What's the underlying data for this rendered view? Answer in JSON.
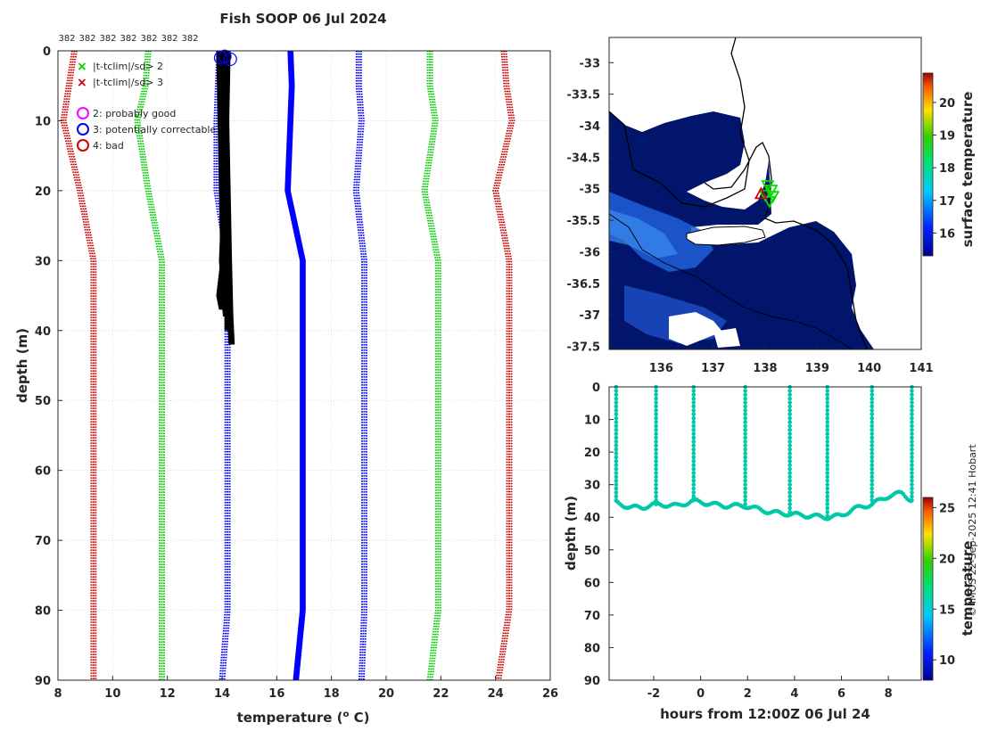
{
  "title": "Fish SOOP 06 Jul 2024",
  "watermark": "© IMOS 22-Sep-2025 12:41 Hobart",
  "profile_counts": [
    "382",
    "382",
    "382",
    "382",
    "382",
    "382",
    "382"
  ],
  "legend": {
    "x_green": "|t-tclim|/sd> 2",
    "x_red": "|t-tclim|/sd> 3",
    "o_magenta": "2: probably good",
    "o_blue": "3: potentially correctable",
    "o_red": "4: bad"
  },
  "colors": {
    "sd1": "#0000ff",
    "sd2": "#00cc00",
    "sd3": "#cc0000",
    "clim": "#0000ff",
    "profile": "#000000",
    "magenta": "#ff00ff",
    "track": "#00c9a7",
    "ocean": "#00146e",
    "land": "#ffffff"
  },
  "chart_data": [
    {
      "id": "profile",
      "type": "line",
      "xlabel": "temperature (",
      "xlabel_sup": "o",
      "xlabel_end": " C)",
      "ylabel": "depth (m)",
      "xlim": [
        8,
        26
      ],
      "ylim": [
        0,
        90
      ],
      "xticks": [
        "8",
        "10",
        "12",
        "14",
        "16",
        "18",
        "20",
        "22",
        "24",
        "26"
      ],
      "yticks": [
        "0",
        "10",
        "20",
        "30",
        "40",
        "50",
        "60",
        "70",
        "80",
        "90"
      ],
      "depths": [
        0,
        5,
        10,
        20,
        30,
        40,
        50,
        60,
        70,
        80,
        90
      ],
      "climatology": [
        16.5,
        16.55,
        16.5,
        16.4,
        16.95,
        16.95,
        16.95,
        16.95,
        16.95,
        16.95,
        16.7
      ],
      "sd_lines": [
        {
          "name": "-3sd",
          "color": "sd3",
          "values": [
            8.6,
            8.4,
            8.2,
            8.8,
            9.3,
            9.3,
            9.3,
            9.3,
            9.3,
            9.3,
            9.3
          ]
        },
        {
          "name": "-2sd",
          "color": "sd2",
          "values": [
            11.3,
            11.2,
            10.9,
            11.3,
            11.8,
            11.8,
            11.8,
            11.8,
            11.8,
            11.8,
            11.8
          ]
        },
        {
          "name": "-1sd",
          "color": "sd1",
          "values": [
            13.9,
            13.85,
            13.8,
            13.8,
            14.2,
            14.2,
            14.2,
            14.2,
            14.2,
            14.2,
            14.0
          ]
        },
        {
          "name": "+1sd",
          "color": "sd1",
          "values": [
            19.0,
            19.0,
            19.1,
            18.9,
            19.2,
            19.2,
            19.2,
            19.2,
            19.2,
            19.2,
            19.1
          ]
        },
        {
          "name": "+2sd",
          "color": "sd2",
          "values": [
            21.6,
            21.6,
            21.8,
            21.4,
            21.9,
            21.9,
            21.9,
            21.9,
            21.9,
            21.9,
            21.6
          ]
        },
        {
          "name": "+3sd",
          "color": "sd3",
          "values": [
            24.3,
            24.4,
            24.6,
            24.0,
            24.5,
            24.5,
            24.5,
            24.5,
            24.5,
            24.5,
            24.1
          ]
        }
      ],
      "profiles": [
        {
          "temps": [
            14.0,
            14.05,
            14.1,
            14.0,
            14.1,
            14.15
          ],
          "depths": [
            0,
            10,
            20,
            30,
            36,
            38
          ]
        },
        {
          "temps": [
            14.1,
            14.15,
            14.1,
            14.1,
            14.2,
            14.2
          ],
          "depths": [
            0,
            10,
            20,
            30,
            37,
            40
          ]
        },
        {
          "temps": [
            14.2,
            14.15,
            14.2,
            14.25,
            14.3,
            14.35
          ],
          "depths": [
            0,
            10,
            20,
            30,
            38,
            42
          ]
        },
        {
          "temps": [
            13.9,
            13.95,
            14.0,
            14.05,
            13.9,
            14.0
          ],
          "depths": [
            0,
            10,
            20,
            30,
            35,
            37
          ]
        }
      ],
      "flag_circles": [
        {
          "t": 13.95,
          "d": 1
        },
        {
          "t": 14.1,
          "d": 0.8
        },
        {
          "t": 14.3,
          "d": 1.2
        }
      ]
    },
    {
      "id": "map",
      "type": "heatmap",
      "colorbar_label": "surface temperature",
      "colorbar_ticks": [
        "16",
        "17",
        "18",
        "19",
        "20"
      ],
      "colorbar_range": [
        15.3,
        20.9
      ],
      "xticks": [
        "136",
        "137",
        "138",
        "139",
        "140",
        "141"
      ],
      "yticks": [
        "-33",
        "-33.5",
        "-34",
        "-34.5",
        "-35",
        "-35.5",
        "-36",
        "-36.5",
        "-37",
        "-37.5"
      ],
      "xlim": [
        135.0,
        141.0
      ],
      "ylim": [
        -37.55,
        -32.6
      ],
      "stations": [
        {
          "lon": 138.05,
          "lat": -34.95
        },
        {
          "lon": 138.12,
          "lat": -35.02
        },
        {
          "lon": 138.0,
          "lat": -35.1
        },
        {
          "lon": 138.15,
          "lat": -35.12
        },
        {
          "lon": 138.08,
          "lat": -35.2
        }
      ],
      "flagged_station": {
        "lon": 137.92,
        "lat": -35.08
      }
    },
    {
      "id": "timeseries",
      "type": "scatter",
      "xlabel": "hours from 12:00Z 06 Jul 24",
      "ylabel": "depth (m)",
      "xlim": [
        -3.9,
        9.4
      ],
      "ylim": [
        0,
        90
      ],
      "xticks": [
        "-2",
        "0",
        "2",
        "4",
        "6",
        "8"
      ],
      "xtick_values": [
        -2,
        0,
        2,
        4,
        6,
        8
      ],
      "yticks": [
        "0",
        "10",
        "20",
        "30",
        "40",
        "50",
        "60",
        "70",
        "80",
        "90"
      ],
      "colorbar_label": "temperature",
      "colorbar_ticks": [
        "10",
        "15",
        "20",
        "25"
      ],
      "colorbar_range": [
        8,
        26
      ],
      "casts": [
        -3.6,
        -1.9,
        -0.3,
        1.9,
        3.8,
        5.4,
        7.3,
        9.0
      ],
      "seafloor": [
        [
          -3.6,
          35.5
        ],
        [
          -3,
          37
        ],
        [
          -2.5,
          37
        ],
        [
          -1.9,
          36
        ],
        [
          -1,
          36.5
        ],
        [
          -0.3,
          35
        ],
        [
          0.5,
          36
        ],
        [
          1,
          36.5
        ],
        [
          1.9,
          36.5
        ],
        [
          3,
          38.5
        ],
        [
          3.8,
          39
        ],
        [
          4.5,
          39.5
        ],
        [
          5.4,
          40
        ],
        [
          6,
          39.5
        ],
        [
          6.5,
          37.5
        ],
        [
          7.3,
          36
        ],
        [
          8,
          33.5
        ],
        [
          8.6,
          32.5
        ],
        [
          9.0,
          35
        ]
      ]
    }
  ]
}
